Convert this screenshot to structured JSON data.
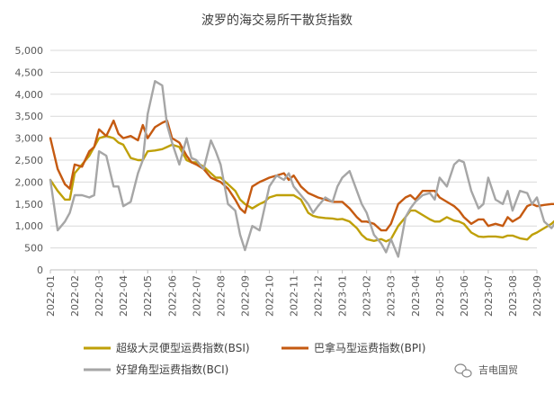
{
  "chart_data": {
    "type": "line",
    "title": "波罗的海交易所干散货指数",
    "ylim": [
      0,
      5000
    ],
    "yticks": [
      "0",
      "500",
      "1,000",
      "1,500",
      "2,000",
      "2,500",
      "3,000",
      "3,500",
      "4,000",
      "4,500",
      "5,000"
    ],
    "xtick_labels": [
      "2022-01",
      "2022-02",
      "2022-03",
      "2022-04",
      "2022-05",
      "2022-06",
      "2022-07",
      "2022-08",
      "2022-09",
      "2022-10",
      "2022-11",
      "2022-12",
      "2023-01",
      "2023-02",
      "2023-03",
      "2023-04",
      "2023-05",
      "2023-06",
      "2023-07",
      "2023-08",
      "2023-09"
    ],
    "series": [
      {
        "name": "超级大灵便型运费指数(BSI)",
        "color": "#bfa008",
        "points": [
          [
            0,
            2050
          ],
          [
            0.3,
            1800
          ],
          [
            0.6,
            1600
          ],
          [
            0.8,
            1600
          ],
          [
            1,
            2200
          ],
          [
            1.3,
            2400
          ],
          [
            1.6,
            2600
          ],
          [
            1.8,
            2800
          ],
          [
            2,
            3000
          ],
          [
            2.3,
            3050
          ],
          [
            2.6,
            3000
          ],
          [
            2.8,
            2900
          ],
          [
            3,
            2850
          ],
          [
            3.3,
            2550
          ],
          [
            3.6,
            2500
          ],
          [
            3.8,
            2500
          ],
          [
            4,
            2700
          ],
          [
            4.3,
            2720
          ],
          [
            4.6,
            2750
          ],
          [
            4.8,
            2800
          ],
          [
            5,
            2850
          ],
          [
            5.3,
            2800
          ],
          [
            5.6,
            2500
          ],
          [
            5.8,
            2450
          ],
          [
            6,
            2450
          ],
          [
            6.3,
            2350
          ],
          [
            6.6,
            2200
          ],
          [
            6.8,
            2100
          ],
          [
            7,
            2100
          ],
          [
            7.3,
            1950
          ],
          [
            7.6,
            1800
          ],
          [
            7.8,
            1600
          ],
          [
            8,
            1500
          ],
          [
            8.3,
            1400
          ],
          [
            8.6,
            1500
          ],
          [
            8.8,
            1550
          ],
          [
            9,
            1650
          ],
          [
            9.3,
            1700
          ],
          [
            9.6,
            1700
          ],
          [
            9.8,
            1700
          ],
          [
            10,
            1700
          ],
          [
            10.3,
            1600
          ],
          [
            10.6,
            1300
          ],
          [
            10.8,
            1230
          ],
          [
            11,
            1200
          ],
          [
            11.3,
            1180
          ],
          [
            11.6,
            1170
          ],
          [
            11.8,
            1150
          ],
          [
            12,
            1160
          ],
          [
            12.3,
            1100
          ],
          [
            12.6,
            950
          ],
          [
            12.8,
            800
          ],
          [
            13,
            700
          ],
          [
            13.3,
            660
          ],
          [
            13.6,
            700
          ],
          [
            13.8,
            650
          ],
          [
            14,
            700
          ],
          [
            14.3,
            1000
          ],
          [
            14.6,
            1200
          ],
          [
            14.8,
            1350
          ],
          [
            15,
            1350
          ],
          [
            15.3,
            1250
          ],
          [
            15.6,
            1150
          ],
          [
            15.8,
            1100
          ],
          [
            16,
            1100
          ],
          [
            16.3,
            1200
          ],
          [
            16.6,
            1120
          ],
          [
            16.8,
            1100
          ],
          [
            17,
            1050
          ],
          [
            17.3,
            850
          ],
          [
            17.6,
            760
          ],
          [
            17.8,
            750
          ],
          [
            18,
            760
          ],
          [
            18.3,
            760
          ],
          [
            18.6,
            740
          ],
          [
            18.8,
            780
          ],
          [
            19,
            780
          ],
          [
            19.3,
            720
          ],
          [
            19.6,
            690
          ],
          [
            19.8,
            800
          ],
          [
            20,
            850
          ],
          [
            20.3,
            950
          ],
          [
            20.6,
            1050
          ],
          [
            20.8,
            1150
          ],
          [
            21,
            1200
          ]
        ]
      },
      {
        "name": "巴拿马型运费指数(BPI)",
        "color": "#c55a11",
        "points": [
          [
            0,
            3000
          ],
          [
            0.3,
            2300
          ],
          [
            0.6,
            1950
          ],
          [
            0.8,
            1850
          ],
          [
            1,
            2400
          ],
          [
            1.3,
            2350
          ],
          [
            1.6,
            2700
          ],
          [
            1.8,
            2800
          ],
          [
            2,
            3200
          ],
          [
            2.3,
            3050
          ],
          [
            2.6,
            3400
          ],
          [
            2.8,
            3100
          ],
          [
            3,
            3000
          ],
          [
            3.3,
            3050
          ],
          [
            3.6,
            2950
          ],
          [
            3.8,
            3300
          ],
          [
            4,
            3000
          ],
          [
            4.3,
            3250
          ],
          [
            4.6,
            3350
          ],
          [
            4.8,
            3400
          ],
          [
            5,
            3000
          ],
          [
            5.3,
            2900
          ],
          [
            5.6,
            2600
          ],
          [
            5.8,
            2450
          ],
          [
            6,
            2400
          ],
          [
            6.3,
            2300
          ],
          [
            6.6,
            2100
          ],
          [
            6.8,
            2050
          ],
          [
            7,
            2000
          ],
          [
            7.3,
            1850
          ],
          [
            7.6,
            1600
          ],
          [
            7.8,
            1400
          ],
          [
            8,
            1300
          ],
          [
            8.3,
            1900
          ],
          [
            8.6,
            2000
          ],
          [
            8.8,
            2050
          ],
          [
            9,
            2100
          ],
          [
            9.3,
            2150
          ],
          [
            9.6,
            2200
          ],
          [
            9.8,
            2050
          ],
          [
            10,
            2150
          ],
          [
            10.3,
            1900
          ],
          [
            10.6,
            1750
          ],
          [
            10.8,
            1700
          ],
          [
            11,
            1650
          ],
          [
            11.3,
            1600
          ],
          [
            11.6,
            1550
          ],
          [
            11.8,
            1550
          ],
          [
            12,
            1550
          ],
          [
            12.3,
            1400
          ],
          [
            12.6,
            1200
          ],
          [
            12.8,
            1100
          ],
          [
            13,
            1100
          ],
          [
            13.3,
            1050
          ],
          [
            13.6,
            900
          ],
          [
            13.8,
            900
          ],
          [
            14,
            1050
          ],
          [
            14.3,
            1500
          ],
          [
            14.6,
            1650
          ],
          [
            14.8,
            1700
          ],
          [
            15,
            1600
          ],
          [
            15.3,
            1800
          ],
          [
            15.6,
            1800
          ],
          [
            15.8,
            1800
          ],
          [
            16,
            1650
          ],
          [
            16.3,
            1550
          ],
          [
            16.6,
            1450
          ],
          [
            16.8,
            1350
          ],
          [
            17,
            1200
          ],
          [
            17.3,
            1050
          ],
          [
            17.6,
            1150
          ],
          [
            17.8,
            1150
          ],
          [
            18,
            1000
          ],
          [
            18.3,
            1050
          ],
          [
            18.6,
            1000
          ],
          [
            18.8,
            1200
          ],
          [
            19,
            1100
          ],
          [
            19.3,
            1200
          ],
          [
            19.6,
            1450
          ],
          [
            19.8,
            1500
          ],
          [
            20,
            1450
          ],
          [
            20.3,
            1480
          ],
          [
            20.6,
            1500
          ],
          [
            20.8,
            1500
          ],
          [
            21,
            1500
          ]
        ]
      },
      {
        "name": "好望角型运费指数(BCI)",
        "color": "#a6a6a6",
        "points": [
          [
            0,
            2050
          ],
          [
            0.3,
            900
          ],
          [
            0.6,
            1100
          ],
          [
            0.8,
            1300
          ],
          [
            1,
            1700
          ],
          [
            1.3,
            1700
          ],
          [
            1.6,
            1650
          ],
          [
            1.8,
            1700
          ],
          [
            2,
            2700
          ],
          [
            2.3,
            2600
          ],
          [
            2.6,
            1900
          ],
          [
            2.8,
            1900
          ],
          [
            3,
            1450
          ],
          [
            3.3,
            1550
          ],
          [
            3.6,
            2200
          ],
          [
            3.8,
            2500
          ],
          [
            4,
            3550
          ],
          [
            4.3,
            4300
          ],
          [
            4.6,
            4200
          ],
          [
            4.8,
            3300
          ],
          [
            5,
            2900
          ],
          [
            5.3,
            2400
          ],
          [
            5.6,
            3000
          ],
          [
            5.8,
            2550
          ],
          [
            6,
            2500
          ],
          [
            6.3,
            2300
          ],
          [
            6.6,
            2950
          ],
          [
            6.8,
            2700
          ],
          [
            7,
            2400
          ],
          [
            7.3,
            1500
          ],
          [
            7.6,
            1350
          ],
          [
            7.8,
            800
          ],
          [
            8,
            450
          ],
          [
            8.3,
            1000
          ],
          [
            8.6,
            900
          ],
          [
            8.8,
            1400
          ],
          [
            9,
            1900
          ],
          [
            9.3,
            2150
          ],
          [
            9.6,
            2050
          ],
          [
            9.8,
            2200
          ],
          [
            10,
            1900
          ],
          [
            10.3,
            1700
          ],
          [
            10.6,
            1500
          ],
          [
            10.8,
            1300
          ],
          [
            11,
            1450
          ],
          [
            11.3,
            1650
          ],
          [
            11.6,
            1550
          ],
          [
            11.8,
            1900
          ],
          [
            12,
            2100
          ],
          [
            12.3,
            2250
          ],
          [
            12.6,
            1800
          ],
          [
            12.8,
            1500
          ],
          [
            13,
            1300
          ],
          [
            13.3,
            800
          ],
          [
            13.6,
            600
          ],
          [
            13.8,
            400
          ],
          [
            14,
            700
          ],
          [
            14.3,
            300
          ],
          [
            14.6,
            1200
          ],
          [
            14.8,
            1400
          ],
          [
            15,
            1550
          ],
          [
            15.3,
            1700
          ],
          [
            15.6,
            1750
          ],
          [
            15.8,
            1600
          ],
          [
            16,
            2100
          ],
          [
            16.3,
            1900
          ],
          [
            16.6,
            2400
          ],
          [
            16.8,
            2500
          ],
          [
            17,
            2450
          ],
          [
            17.3,
            1800
          ],
          [
            17.6,
            1400
          ],
          [
            17.8,
            1500
          ],
          [
            18,
            2100
          ],
          [
            18.3,
            1600
          ],
          [
            18.6,
            1500
          ],
          [
            18.8,
            1800
          ],
          [
            19,
            1350
          ],
          [
            19.3,
            1800
          ],
          [
            19.6,
            1750
          ],
          [
            19.8,
            1500
          ],
          [
            20,
            1650
          ],
          [
            20.3,
            1100
          ],
          [
            20.6,
            950
          ],
          [
            20.8,
            1100
          ],
          [
            21,
            1300
          ]
        ]
      }
    ]
  },
  "watermark": "吉电国贸"
}
